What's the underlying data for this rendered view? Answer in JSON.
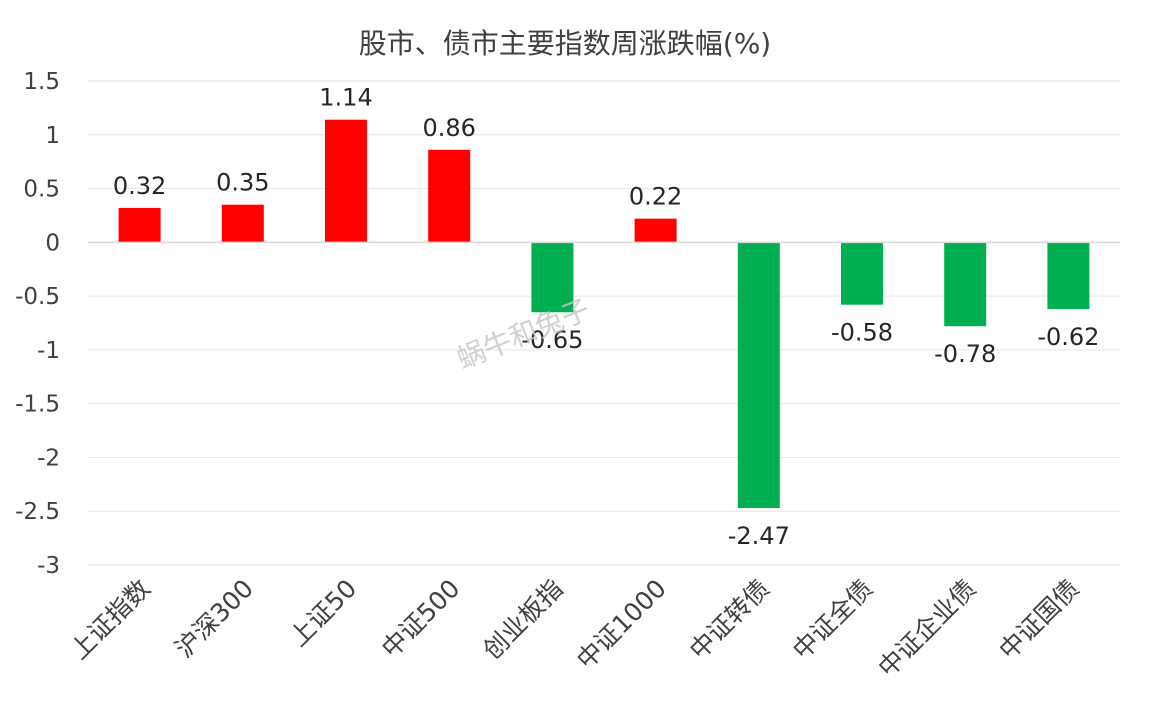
{
  "chart_data": {
    "type": "bar",
    "title": "股市、债市主要指数周涨跌幅(%)",
    "categories": [
      "上证指数",
      "沪深300",
      "上证50",
      "中证500",
      "创业板指",
      "中证1000",
      "中证转债",
      "中证全债",
      "中证企业债",
      "中证国债"
    ],
    "values": [
      0.32,
      0.35,
      1.14,
      0.86,
      -0.65,
      0.22,
      -2.47,
      -0.58,
      -0.78,
      -0.62
    ],
    "data_labels": [
      "0.32",
      "0.35",
      "1.14",
      "0.86",
      "-0.65",
      "0.22",
      "-2.47",
      "-0.58",
      "-0.78",
      "-0.62"
    ],
    "yticks": [
      "1.5",
      "1",
      "0.5",
      "0",
      "-0.5",
      "-1",
      "-1.5",
      "-2",
      "-2.5",
      "-3"
    ],
    "ylim": [
      -3,
      1.5
    ],
    "grid": true,
    "legend": "none",
    "colors": {
      "positive": "#ff0000",
      "negative": "#00b050",
      "grid": "#e6e6e6",
      "axis": "#d9d9d9"
    }
  },
  "watermark": "蜗牛和兔子"
}
